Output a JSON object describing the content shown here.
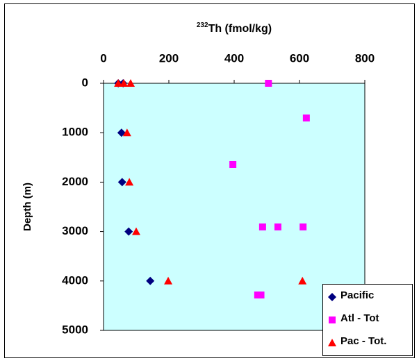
{
  "chart_data": {
    "type": "scatter",
    "x_label_sup": "232",
    "x_label": "Th (fmol/kg)",
    "y_label": "Depth (m)",
    "xlim": [
      0,
      800
    ],
    "xticks": [
      0,
      200,
      400,
      600,
      800
    ],
    "ylim": [
      0,
      5000
    ],
    "yticks": [
      0,
      1000,
      2000,
      3000,
      4000,
      5000
    ],
    "y_inverted": true,
    "x_axis_position": "top",
    "legend": "lower right",
    "background": "#ccffff",
    "series": [
      {
        "name": "Pacific",
        "color": "#000080",
        "marker": "diamond",
        "x": [
          45,
          60,
          55,
          57,
          77,
          143
        ],
        "y": [
          0,
          0,
          1000,
          2000,
          3000,
          4000
        ]
      },
      {
        "name": "Atl - Tot",
        "color": "#ff00ff",
        "marker": "square",
        "x": [
          505,
          621,
          396,
          487,
          534,
          611,
          472,
          482
        ],
        "y": [
          0,
          702,
          1643,
          2907,
          2907,
          2907,
          4284,
          4284
        ]
      },
      {
        "name": "Pac - Tot.",
        "color": "#ff0000",
        "marker": "triangle",
        "x": [
          45,
          62,
          83,
          72,
          79,
          100,
          198,
          609
        ],
        "y": [
          0,
          0,
          0,
          1000,
          2000,
          3000,
          4000,
          4000
        ]
      }
    ]
  }
}
